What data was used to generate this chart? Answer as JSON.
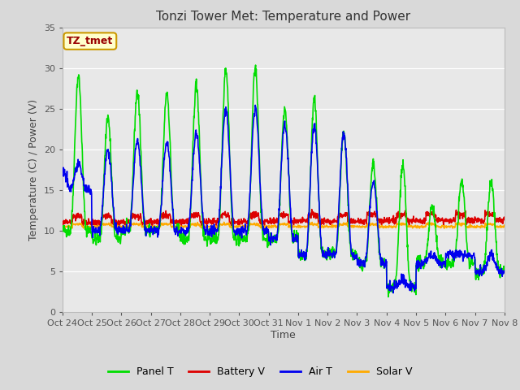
{
  "title": "Tonzi Tower Met: Temperature and Power",
  "xlabel": "Time",
  "ylabel": "Temperature (C) / Power (V)",
  "annotation_text": "TZ_tmet",
  "ylim": [
    0,
    35
  ],
  "yticks": [
    0,
    5,
    10,
    15,
    20,
    25,
    30,
    35
  ],
  "xtick_labels": [
    "Oct 24",
    "Oct 25",
    "Oct 26",
    "Oct 27",
    "Oct 28",
    "Oct 29",
    "Oct 30",
    "Oct 31",
    "Nov 1",
    "Nov 2",
    "Nov 3",
    "Nov 4",
    "Nov 5",
    "Nov 6",
    "Nov 7",
    "Nov 8"
  ],
  "colors": {
    "panel_t": "#00dd00",
    "battery_v": "#dd0000",
    "air_t": "#0000ee",
    "solar_v": "#ffaa00"
  },
  "legend_labels": [
    "Panel T",
    "Battery V",
    "Air T",
    "Solar V"
  ],
  "bg_color": "#d9d9d9",
  "plot_bg_color": "#e8e8e8",
  "grid_color": "#ffffff"
}
